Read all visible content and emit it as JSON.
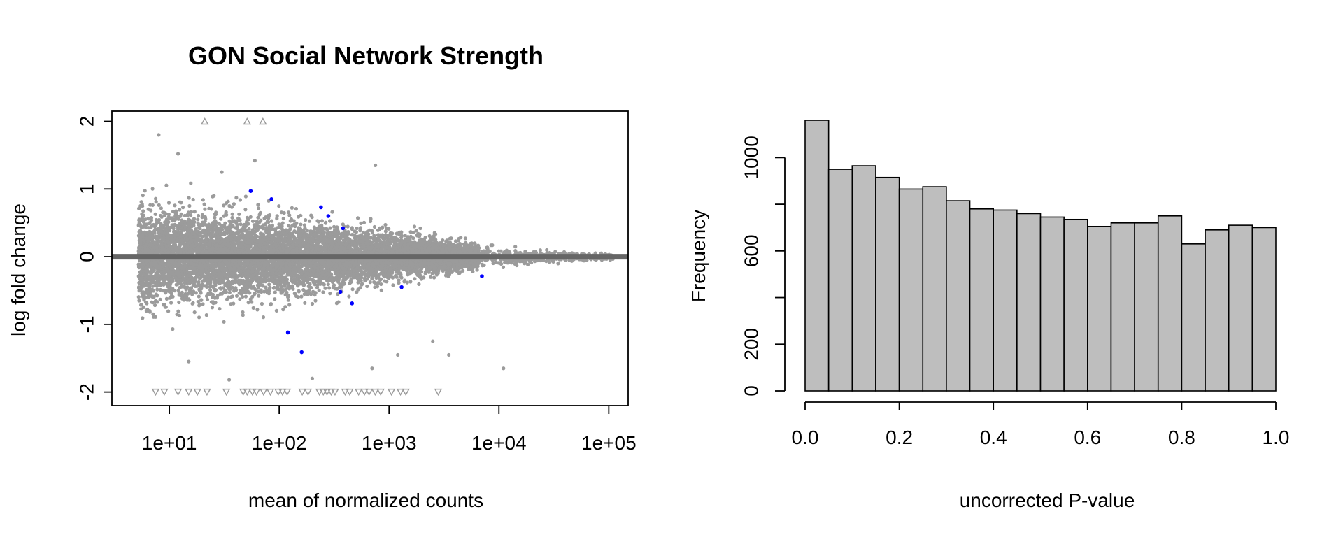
{
  "chart_data": [
    {
      "type": "scatter",
      "title": "GON Social Network Strength",
      "xlabel": "mean of normalized counts",
      "ylabel": "log fold change",
      "x_scale": "log10",
      "xlim": [
        3,
        150000
      ],
      "ylim": [
        -2.2,
        2.15
      ],
      "x_ticks": [
        10,
        100,
        1000,
        10000,
        100000
      ],
      "x_tick_labels": [
        "1e+01",
        "1e+02",
        "1e+03",
        "1e+04",
        "1e+05"
      ],
      "y_ticks": [
        -2,
        -1,
        0,
        1,
        2
      ],
      "y_tick_labels": [
        "-2",
        "-1",
        "0",
        "1",
        "2"
      ],
      "grid": false,
      "reference_line": {
        "y": 0,
        "color": "#666666"
      },
      "colors": {
        "non_significant": "#9b9b9b",
        "significant": "#0000ff",
        "clipped": "#9b9b9b"
      },
      "significant_points": [
        {
          "x": 55,
          "y": 0.97
        },
        {
          "x": 85,
          "y": 0.85
        },
        {
          "x": 240,
          "y": 0.73
        },
        {
          "x": 280,
          "y": 0.6
        },
        {
          "x": 380,
          "y": 0.42
        },
        {
          "x": 1300,
          "y": -0.45
        },
        {
          "x": 360,
          "y": -0.52
        },
        {
          "x": 460,
          "y": -0.69
        },
        {
          "x": 120,
          "y": -1.12
        },
        {
          "x": 160,
          "y": -1.41
        },
        {
          "x": 7000,
          "y": -0.29
        }
      ],
      "outlier_points": [
        {
          "x": 12,
          "y": 1.52
        },
        {
          "x": 8,
          "y": 1.8
        },
        {
          "x": 750,
          "y": 1.35
        },
        {
          "x": 30,
          "y": 1.25
        },
        {
          "x": 60,
          "y": 1.42
        },
        {
          "x": 15,
          "y": -1.55
        },
        {
          "x": 35,
          "y": -1.82
        },
        {
          "x": 1200,
          "y": -1.45
        },
        {
          "x": 2500,
          "y": -1.25
        },
        {
          "x": 3500,
          "y": -1.45
        },
        {
          "x": 11000,
          "y": -1.65
        },
        {
          "x": 700,
          "y": -1.65
        },
        {
          "x": 200,
          "y": -1.8
        }
      ],
      "clipped_up": [
        21,
        51,
        71
      ],
      "clipped_down": [
        7.5,
        9,
        12,
        15,
        18,
        22,
        33,
        47,
        51,
        57,
        62,
        72,
        83,
        98,
        107,
        118,
        162,
        183,
        232,
        252,
        272,
        297,
        322,
        398,
        438,
        528,
        597,
        657,
        747,
        838,
        1050,
        1270,
        1420,
        2800
      ],
      "trend": {
        "mu_min": 5,
        "mu_max": 110000,
        "spread_by_log10_mean": [
          {
            "log10_mean": 0.7,
            "sd": 0.33
          },
          {
            "log10_mean": 2.0,
            "sd": 0.27
          },
          {
            "log10_mean": 3.0,
            "sd": 0.16
          },
          {
            "log10_mean": 4.0,
            "sd": 0.06
          },
          {
            "log10_mean": 5.0,
            "sd": 0.02
          }
        ]
      }
    },
    {
      "type": "bar",
      "title": "",
      "xlabel": "uncorrected P-value",
      "ylabel": "Frequency",
      "bin_edges": [
        0,
        0.05,
        0.1,
        0.15,
        0.2,
        0.25,
        0.3,
        0.35,
        0.4,
        0.45,
        0.5,
        0.55,
        0.6,
        0.65,
        0.7,
        0.75,
        0.8,
        0.85,
        0.9,
        0.95,
        1.0
      ],
      "values": [
        1160,
        950,
        965,
        915,
        865,
        875,
        815,
        780,
        775,
        760,
        745,
        735,
        705,
        720,
        720,
        750,
        630,
        690,
        710,
        700
      ],
      "xlim": [
        0,
        1
      ],
      "ylim": [
        0,
        1160
      ],
      "x_ticks": [
        0,
        0.2,
        0.4,
        0.6,
        0.8,
        1.0
      ],
      "x_tick_labels": [
        "0.0",
        "0.2",
        "0.4",
        "0.6",
        "0.8",
        "1.0"
      ],
      "y_ticks": [
        0,
        200,
        400,
        600,
        800,
        1000
      ],
      "y_tick_labels": [
        "0",
        "200",
        "",
        "600",
        "",
        "1000"
      ],
      "bar_color": "#bebebe",
      "grid": false
    }
  ]
}
